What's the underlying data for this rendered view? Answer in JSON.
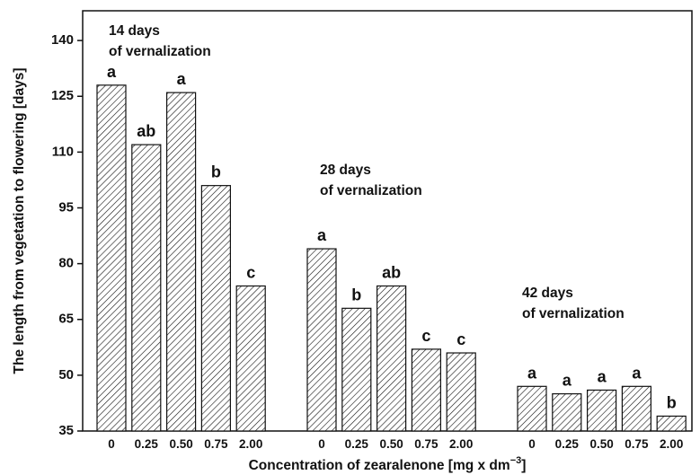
{
  "chart_data": {
    "type": "bar",
    "ylabel": "The length from vegetation to flowering [days]",
    "xlabel_main": "Concentration of zearalenone [mg x dm",
    "xlabel_sup": "−3",
    "xlabel_end": "]",
    "ylim": [
      35,
      148
    ],
    "yticks": [
      35,
      50,
      65,
      80,
      95,
      110,
      125,
      140
    ],
    "groups": [
      {
        "label_line1": "14 days",
        "label_line2": "of vernalization",
        "bars": [
          {
            "category": "0",
            "value": 128,
            "sig": "a"
          },
          {
            "category": "0.25",
            "value": 112,
            "sig": "ab"
          },
          {
            "category": "0.50",
            "value": 126,
            "sig": "a"
          },
          {
            "category": "0.75",
            "value": 101,
            "sig": "b"
          },
          {
            "category": "2.00",
            "value": 74,
            "sig": "c"
          }
        ]
      },
      {
        "label_line1": "28 days",
        "label_line2": "of vernalization",
        "bars": [
          {
            "category": "0",
            "value": 84,
            "sig": "a"
          },
          {
            "category": "0.25",
            "value": 68,
            "sig": "b"
          },
          {
            "category": "0.50",
            "value": 74,
            "sig": "ab"
          },
          {
            "category": "0.75",
            "value": 57,
            "sig": "c"
          },
          {
            "category": "2.00",
            "value": 56,
            "sig": "c"
          }
        ]
      },
      {
        "label_line1": "42 days",
        "label_line2": "of vernalization",
        "bars": [
          {
            "category": "0",
            "value": 47,
            "sig": "a"
          },
          {
            "category": "0.25",
            "value": 45,
            "sig": "a"
          },
          {
            "category": "0.50",
            "value": 46,
            "sig": "a"
          },
          {
            "category": "0.75",
            "value": 47,
            "sig": "a"
          },
          {
            "category": "2.00",
            "value": 39,
            "sig": "b"
          }
        ]
      }
    ]
  }
}
